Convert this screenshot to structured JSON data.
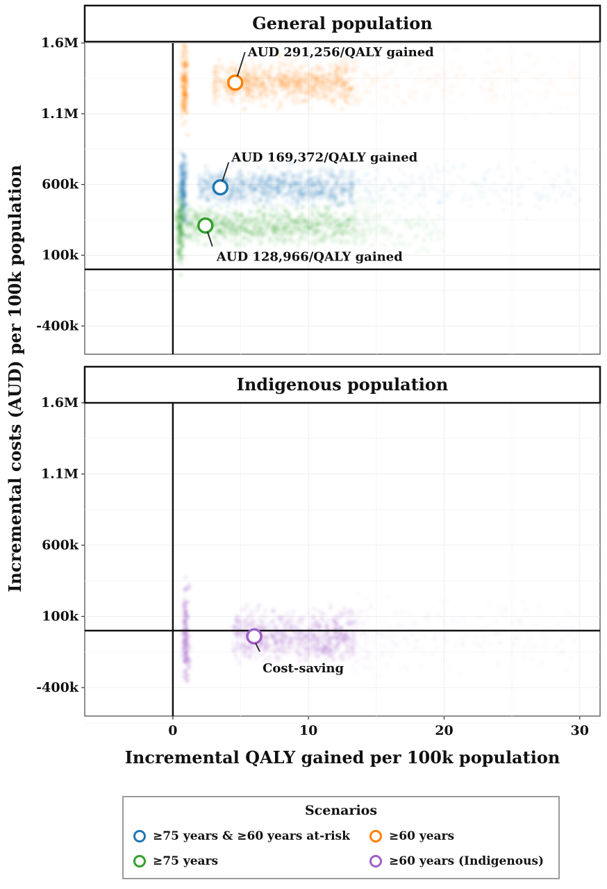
{
  "chart_data": {
    "type": "scatter",
    "title": "",
    "xlabel": "Incremental QALY gained per 100k population",
    "ylabel": "Incremental costs (AUD) per 100k population",
    "xlim": [
      -6.5,
      31.5
    ],
    "ylim": [
      -600000,
      1600000
    ],
    "x_ticks": [
      0,
      10,
      20,
      30
    ],
    "x_tick_labels": [
      "0",
      "10",
      "20",
      "30"
    ],
    "y_ticks": [
      -400000,
      100000,
      600000,
      1100000,
      1600000
    ],
    "y_tick_labels": [
      "-400k",
      "100k",
      "600k",
      "1.1M",
      "1.6M"
    ],
    "grid": true,
    "legend_position": "bottom",
    "legend_title": "Scenarios",
    "colors": {
      "blue": "#1f78b4",
      "green": "#33a02c",
      "orange": "#ff7f00",
      "purple": "#a05fc4"
    },
    "panels": [
      {
        "strip": "General population",
        "series": [
          {
            "name": "≥60 years",
            "color": "#ff7f00",
            "mean": {
              "x": 4.6,
              "y": 1320000
            },
            "cloud": {
              "x_min": 0.7,
              "x_max": 30,
              "y_center": 1320000,
              "y_spread": 130000
            },
            "annotation": "AUD 291,256/QALY gained"
          },
          {
            "name": "≥75 years & ≥60 years at-risk",
            "color": "#1f78b4",
            "mean": {
              "x": 3.5,
              "y": 580000
            },
            "cloud": {
              "x_min": 0.6,
              "x_max": 30,
              "y_center": 580000,
              "y_spread": 110000
            },
            "annotation": "AUD 169,372/QALY gained"
          },
          {
            "name": "≥75 years",
            "color": "#33a02c",
            "mean": {
              "x": 2.4,
              "y": 310000
            },
            "cloud": {
              "x_min": 0.4,
              "x_max": 20,
              "y_center": 310000,
              "y_spread": 110000
            },
            "annotation": "AUD 128,966/QALY gained"
          }
        ]
      },
      {
        "strip": "Indigenous population",
        "series": [
          {
            "name": "≥60 years (Indigenous)",
            "color": "#a05fc4",
            "mean": {
              "x": 6.0,
              "y": -40000
            },
            "cloud": {
              "x_min": 0.8,
              "x_max": 30,
              "y_center": -40000,
              "y_spread": 150000
            },
            "annotation": "Cost-saving"
          }
        ]
      }
    ],
    "legend": [
      {
        "label": "≥75 years & ≥60 years at-risk",
        "color": "#1f78b4"
      },
      {
        "label": "≥60 years",
        "color": "#ff7f00"
      },
      {
        "label": "≥75 years",
        "color": "#33a02c"
      },
      {
        "label": "≥60 years (Indigenous)",
        "color": "#a05fc4"
      }
    ]
  }
}
